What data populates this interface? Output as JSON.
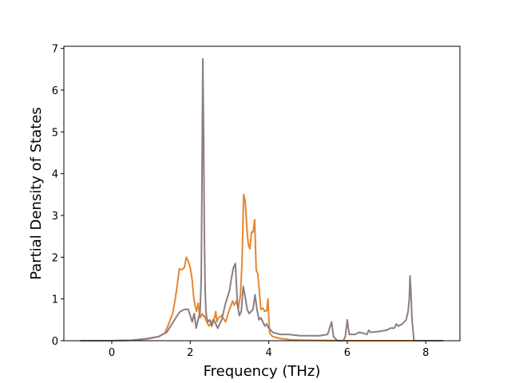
{
  "chart_data": {
    "type": "line",
    "title": "",
    "xlabel": "Frequency (THz)",
    "ylabel": "Partial Density of States",
    "xlim": [
      -1.22,
      8.87
    ],
    "ylim": [
      0,
      7.05
    ],
    "xticks": [
      0,
      2,
      4,
      6,
      8
    ],
    "yticks": [
      0,
      1,
      2,
      3,
      4,
      5,
      6,
      7
    ],
    "grid": false,
    "legend": "none",
    "series": [
      {
        "color": "#e6862e",
        "x": [
          -0.8,
          0.0,
          0.5,
          0.9,
          1.2,
          1.35,
          1.45,
          1.55,
          1.6,
          1.65,
          1.72,
          1.78,
          1.85,
          1.9,
          1.95,
          2.0,
          2.05,
          2.08,
          2.12,
          2.16,
          2.2,
          2.25,
          2.3,
          2.34,
          2.36,
          2.38,
          2.42,
          2.48,
          2.55,
          2.62,
          2.65,
          2.68,
          2.72,
          2.8,
          2.9,
          3.0,
          3.08,
          3.12,
          3.18,
          3.22,
          3.28,
          3.32,
          3.36,
          3.4,
          3.45,
          3.48,
          3.52,
          3.56,
          3.6,
          3.64,
          3.68,
          3.72,
          3.75,
          3.8,
          3.85,
          3.9,
          3.95,
          3.98,
          4.02,
          4.05,
          4.1,
          4.3,
          4.6,
          5.0,
          6.0,
          7.0,
          7.72
        ],
        "y": [
          0,
          0,
          0.01,
          0.04,
          0.1,
          0.18,
          0.4,
          0.65,
          0.9,
          1.2,
          1.72,
          1.7,
          1.75,
          2.0,
          1.9,
          1.75,
          1.45,
          1.1,
          0.85,
          0.7,
          0.9,
          0.55,
          0.65,
          0.58,
          0.6,
          0.55,
          0.45,
          0.35,
          0.45,
          0.55,
          0.7,
          0.45,
          0.55,
          0.6,
          0.45,
          0.75,
          0.95,
          0.85,
          0.95,
          0.75,
          1.1,
          1.9,
          3.5,
          3.35,
          2.6,
          2.3,
          2.2,
          2.6,
          2.6,
          2.9,
          1.7,
          1.6,
          1.3,
          0.75,
          0.78,
          0.7,
          0.72,
          1.0,
          0.2,
          0.15,
          0.1,
          0.05,
          0.02,
          0.01,
          0,
          0,
          0
        ]
      },
      {
        "color": "#8c7e82",
        "x": [
          -0.8,
          0.0,
          0.5,
          0.9,
          1.2,
          1.4,
          1.5,
          1.6,
          1.7,
          1.75,
          1.85,
          1.95,
          2.0,
          2.05,
          2.1,
          2.15,
          2.2,
          2.25,
          2.28,
          2.3,
          2.32,
          2.34,
          2.36,
          2.38,
          2.4,
          2.42,
          2.45,
          2.5,
          2.55,
          2.6,
          2.7,
          2.8,
          2.9,
          3.0,
          3.05,
          3.1,
          3.15,
          3.2,
          3.25,
          3.3,
          3.35,
          3.4,
          3.45,
          3.5,
          3.55,
          3.6,
          3.65,
          3.7,
          3.75,
          3.8,
          3.85,
          3.9,
          3.95,
          4.0,
          4.1,
          4.3,
          4.5,
          4.8,
          5.0,
          5.3,
          5.5,
          5.6,
          5.65,
          5.7,
          5.75,
          5.8,
          5.9,
          5.95,
          6.0,
          6.05,
          6.1,
          6.2,
          6.3,
          6.4,
          6.5,
          6.55,
          6.6,
          6.8,
          7.0,
          7.1,
          7.2,
          7.25,
          7.3,
          7.4,
          7.5,
          7.55,
          7.58,
          7.6,
          7.62,
          7.65,
          7.7,
          7.75,
          8.0,
          8.45
        ],
        "y": [
          0,
          0,
          0.01,
          0.05,
          0.1,
          0.2,
          0.35,
          0.5,
          0.65,
          0.7,
          0.75,
          0.75,
          0.6,
          0.45,
          0.65,
          0.3,
          0.5,
          0.7,
          1.5,
          4.0,
          6.75,
          5.0,
          2.5,
          1.2,
          0.7,
          0.55,
          0.45,
          0.5,
          0.35,
          0.5,
          0.3,
          0.5,
          0.9,
          1.2,
          1.5,
          1.75,
          1.85,
          0.9,
          0.6,
          0.7,
          1.3,
          1.05,
          0.75,
          0.65,
          0.7,
          0.75,
          1.1,
          0.75,
          0.5,
          0.55,
          0.45,
          0.35,
          0.4,
          0.3,
          0.2,
          0.15,
          0.15,
          0.12,
          0.12,
          0.12,
          0.15,
          0.45,
          0.1,
          0.05,
          0.0,
          0.0,
          0.0,
          0.1,
          0.5,
          0.15,
          0.15,
          0.15,
          0.2,
          0.18,
          0.15,
          0.25,
          0.2,
          0.22,
          0.25,
          0.3,
          0.3,
          0.4,
          0.35,
          0.4,
          0.5,
          0.7,
          1.0,
          1.55,
          1.2,
          0.5,
          0.0,
          0.0,
          0.0,
          0.0
        ]
      }
    ]
  }
}
